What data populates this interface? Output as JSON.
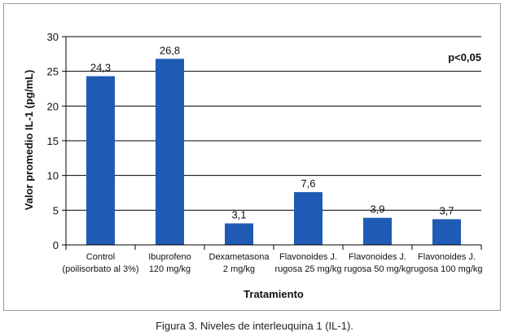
{
  "caption": "Figura 3. Niveles de interleuquina 1 (IL-1).",
  "chart_data": {
    "type": "bar",
    "categories": [
      [
        "Control",
        "(poilisorbato al 3%)"
      ],
      [
        "Ibuprofeno",
        "120 mg/kg"
      ],
      [
        "Dexametasona",
        "2 mg/kg"
      ],
      [
        "Flavonoides J.",
        "rugosa 25 mg/kg"
      ],
      [
        "Flavonoides J.",
        "rugosa 50 mg/kg"
      ],
      [
        "Flavonoides J.",
        "rugosa 100 mg/kg"
      ]
    ],
    "values": [
      24.3,
      26.8,
      3.1,
      7.6,
      3.9,
      3.7
    ],
    "value_labels": [
      "24,3",
      "26,8",
      "3,1",
      "7,6",
      "3,9",
      "3,7"
    ],
    "xlabel": "Tratamiento",
    "ylabel": "Valor promedio IL-1 (pg/mL)",
    "ylim": [
      0,
      30
    ],
    "yticks": [
      0,
      5,
      10,
      15,
      20,
      25,
      30
    ],
    "annotation": "p<0,05",
    "grid": true,
    "bar_color": "#1f5bb5"
  }
}
